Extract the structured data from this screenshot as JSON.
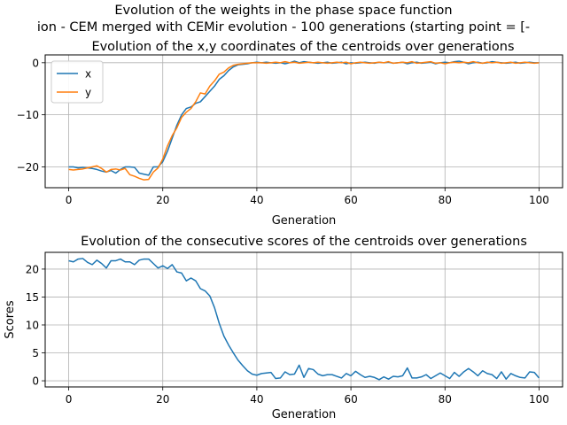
{
  "figure": {
    "suptitle_line1": "Evolution of the weights in the phase space  function",
    "suptitle_line2": "ion - CEM merged with CEMir evolution - 100 generations (starting point = [-"
  },
  "chart_data": [
    {
      "type": "line",
      "title": "Evolution of the x,y coordinates of the centroids over generations",
      "xlabel": "Generation",
      "ylabel": "",
      "xlim": [
        -5,
        105
      ],
      "ylim": [
        -24,
        1.5
      ],
      "xticks": [
        0,
        20,
        40,
        60,
        80,
        100
      ],
      "yticks": [
        0,
        -10,
        -20
      ],
      "grid": true,
      "legend": "top-left",
      "series": [
        {
          "name": "x",
          "color": "#1f77b4",
          "x": [
            0,
            1,
            2,
            3,
            4,
            5,
            6,
            7,
            8,
            9,
            10,
            11,
            12,
            13,
            14,
            15,
            16,
            17,
            18,
            19,
            20,
            21,
            22,
            23,
            24,
            25,
            26,
            27,
            28,
            29,
            30,
            31,
            32,
            33,
            34,
            35,
            36,
            37,
            38,
            39,
            40,
            41,
            42,
            43,
            44,
            45,
            46,
            47,
            48,
            49,
            50,
            51,
            52,
            53,
            54,
            55,
            56,
            57,
            58,
            59,
            60,
            61,
            62,
            63,
            64,
            65,
            66,
            67,
            68,
            69,
            70,
            71,
            72,
            73,
            74,
            75,
            76,
            77,
            78,
            79,
            80,
            81,
            82,
            83,
            84,
            85,
            86,
            87,
            88,
            89,
            90,
            91,
            92,
            93,
            94,
            95,
            96,
            97,
            98,
            99,
            100
          ],
          "values": [
            -20,
            -20,
            -20.2,
            -20.1,
            -20.2,
            -20.3,
            -20.5,
            -20.8,
            -21,
            -20.7,
            -21.2,
            -20.5,
            -20,
            -20,
            -20.1,
            -21.2,
            -21.4,
            -21.6,
            -20,
            -20,
            -19,
            -17,
            -14.5,
            -12,
            -10,
            -8.8,
            -8.5,
            -7.8,
            -7.5,
            -6.5,
            -5.5,
            -4.5,
            -3.2,
            -2.5,
            -1.5,
            -0.8,
            -0.4,
            -0.3,
            -0.2,
            0,
            0.1,
            0,
            0.1,
            0,
            -0.1,
            0,
            -0.2,
            0,
            0.3,
            0,
            0.2,
            0.1,
            0,
            -0.1,
            0,
            0.1,
            -0.1,
            0,
            0.1,
            -0.2,
            0,
            -0.1,
            0,
            0.1,
            0,
            -0.1,
            0.1,
            0,
            0.1,
            -0.1,
            0,
            0.1,
            -0.2,
            0,
            0.1,
            -0.1,
            0,
            0.1,
            -0.2,
            0,
            0.1,
            0,
            0.2,
            0.3,
            0.1,
            -0.2,
            0,
            0.1,
            -0.1,
            0,
            0.2,
            0.1,
            0,
            -0.1,
            0,
            0.1,
            -0.1,
            0,
            0.1,
            0,
            0
          ]
        },
        {
          "name": "y",
          "color": "#ff7f0e",
          "x": [
            0,
            1,
            2,
            3,
            4,
            5,
            6,
            7,
            8,
            9,
            10,
            11,
            12,
            13,
            14,
            15,
            16,
            17,
            18,
            19,
            20,
            21,
            22,
            23,
            24,
            25,
            26,
            27,
            28,
            29,
            30,
            31,
            32,
            33,
            34,
            35,
            36,
            37,
            38,
            39,
            40,
            41,
            42,
            43,
            44,
            45,
            46,
            47,
            48,
            49,
            50,
            51,
            52,
            53,
            54,
            55,
            56,
            57,
            58,
            59,
            60,
            61,
            62,
            63,
            64,
            65,
            66,
            67,
            68,
            69,
            70,
            71,
            72,
            73,
            74,
            75,
            76,
            77,
            78,
            79,
            80,
            81,
            82,
            83,
            84,
            85,
            86,
            87,
            88,
            89,
            90,
            91,
            92,
            93,
            94,
            95,
            96,
            97,
            98,
            99,
            100
          ],
          "values": [
            -20.5,
            -20.6,
            -20.5,
            -20.4,
            -20.2,
            -20,
            -19.8,
            -20.3,
            -21,
            -20.5,
            -20.4,
            -20.6,
            -20.3,
            -21.5,
            -21.8,
            -22.2,
            -22.5,
            -22.4,
            -21,
            -20.2,
            -18.5,
            -16,
            -14,
            -12.5,
            -10.5,
            -9.5,
            -8.8,
            -7.5,
            -5.8,
            -6,
            -4.5,
            -3.5,
            -2.2,
            -1.8,
            -1,
            -0.5,
            -0.3,
            -0.2,
            -0.1,
            0,
            0,
            0,
            -0.1,
            0,
            0.1,
            0,
            0.2,
            0,
            0.1,
            -0.1,
            0,
            0.1,
            0,
            0.1,
            0,
            -0.1,
            0,
            0.1,
            0,
            0.1,
            -0.2,
            0,
            0.1,
            0,
            -0.1,
            0,
            0.1,
            0,
            0.2,
            -0.1,
            0,
            0.1,
            0,
            0.2,
            -0.1,
            0,
            0.1,
            0.2,
            -0.1,
            0,
            -0.2,
            0,
            0.1,
            0,
            0.1,
            0,
            0.2,
            0,
            -0.1,
            0.1,
            0,
            0.1,
            -0.1,
            0,
            0.1,
            -0.1,
            0,
            0.1,
            0,
            -0.1,
            0
          ]
        }
      ]
    },
    {
      "type": "line",
      "title": "Evolution of the consecutive scores of the centroids over generations",
      "xlabel": "Generation",
      "ylabel": "Scores",
      "xlim": [
        -5,
        105
      ],
      "ylim": [
        -1.1,
        23
      ],
      "xticks": [
        0,
        20,
        40,
        60,
        80,
        100
      ],
      "yticks": [
        0,
        5,
        10,
        15,
        20
      ],
      "grid": true,
      "series": [
        {
          "color": "#1f77b4",
          "x": [
            0,
            1,
            2,
            3,
            4,
            5,
            6,
            7,
            8,
            9,
            10,
            11,
            12,
            13,
            14,
            15,
            16,
            17,
            18,
            19,
            20,
            21,
            22,
            23,
            24,
            25,
            26,
            27,
            28,
            29,
            30,
            31,
            32,
            33,
            34,
            35,
            36,
            37,
            38,
            39,
            40,
            41,
            42,
            43,
            44,
            45,
            46,
            47,
            48,
            49,
            50,
            51,
            52,
            53,
            54,
            55,
            56,
            57,
            58,
            59,
            60,
            61,
            62,
            63,
            64,
            65,
            66,
            67,
            68,
            69,
            70,
            71,
            72,
            73,
            74,
            75,
            76,
            77,
            78,
            79,
            80,
            81,
            82,
            83,
            84,
            85,
            86,
            87,
            88,
            89,
            90,
            91,
            92,
            93,
            94,
            95,
            96,
            97,
            98,
            99,
            100
          ],
          "values": [
            21.5,
            21.3,
            21.8,
            21.9,
            21.2,
            20.8,
            21.6,
            21,
            20.2,
            21.5,
            21.5,
            21.8,
            21.3,
            21.3,
            20.8,
            21.6,
            21.8,
            21.8,
            21,
            20.2,
            20.6,
            20.1,
            20.8,
            19.5,
            19.3,
            17.9,
            18.4,
            17.9,
            16.5,
            16.1,
            15.2,
            13.1,
            10.3,
            8,
            6.4,
            5,
            3.7,
            2.7,
            1.8,
            1.2,
            1,
            1.3,
            1.4,
            1.5,
            0.4,
            0.5,
            1.6,
            1.1,
            1.2,
            2.8,
            0.6,
            2.2,
            2,
            1.2,
            0.9,
            1.1,
            1.1,
            0.8,
            0.5,
            1.3,
            0.9,
            1.7,
            1.1,
            0.6,
            0.8,
            0.6,
            0.2,
            0.7,
            0.3,
            0.8,
            0.7,
            0.9,
            2.3,
            0.5,
            0.5,
            0.7,
            1.1,
            0.4,
            0.9,
            1.4,
            0.9,
            0.4,
            1.5,
            0.8,
            1.6,
            2.2,
            1.6,
            0.9,
            1.8,
            1.3,
            1.1,
            0.4,
            1.6,
            0.3,
            1.3,
            0.9,
            0.6,
            0.5,
            1.6,
            1.5,
            0.5
          ]
        }
      ]
    }
  ]
}
